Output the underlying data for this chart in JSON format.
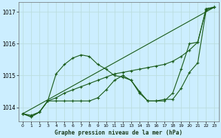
{
  "title": "Graphe pression niveau de la mer (hPa)",
  "bg_color": "#cceeff",
  "grid_color": "#bbdddd",
  "line_color": "#1a5c1a",
  "xlim": [
    -0.5,
    23.5
  ],
  "ylim": [
    1013.55,
    1017.3
  ],
  "yticks": [
    1014,
    1015,
    1016,
    1017
  ],
  "xticks": [
    0,
    1,
    2,
    3,
    4,
    5,
    6,
    7,
    8,
    9,
    10,
    11,
    12,
    13,
    14,
    15,
    16,
    17,
    18,
    19,
    20,
    21,
    22,
    23
  ],
  "series": [
    {
      "x": [
        0,
        1,
        2,
        3,
        4,
        5,
        6,
        7,
        8,
        9,
        10,
        11,
        12,
        13,
        14,
        15,
        16,
        17,
        18,
        19,
        20,
        21,
        22,
        23
      ],
      "y": [
        1013.8,
        1013.75,
        1013.85,
        1014.2,
        1014.3,
        1014.45,
        1014.55,
        1014.65,
        1014.75,
        1014.85,
        1014.95,
        1015.05,
        1015.1,
        1015.15,
        1015.2,
        1015.25,
        1015.3,
        1015.35,
        1015.45,
        1015.6,
        1015.8,
        1016.05,
        1017.1,
        1017.15
      ],
      "linestyle": "-"
    },
    {
      "x": [
        0,
        1,
        2,
        3,
        4,
        5,
        6,
        7,
        8,
        9,
        10,
        11,
        12,
        13,
        14,
        15,
        16,
        17,
        18,
        19,
        20,
        21,
        22,
        23
      ],
      "y": [
        1013.8,
        1013.7,
        1013.85,
        1014.2,
        1015.05,
        1015.35,
        1015.55,
        1015.65,
        1015.6,
        1015.35,
        1015.2,
        1015.0,
        1014.95,
        1014.85,
        1014.45,
        1014.2,
        1014.2,
        1014.2,
        1014.45,
        1015.2,
        1016.0,
        1016.05,
        1017.1,
        1017.15
      ],
      "linestyle": "-"
    },
    {
      "x": [
        0,
        1,
        2,
        3,
        4,
        5,
        6,
        7,
        8,
        9,
        10,
        11,
        12,
        13,
        14,
        15,
        16,
        17,
        18,
        19,
        20,
        21,
        22,
        23
      ],
      "y": [
        1013.8,
        1013.7,
        1013.85,
        1014.2,
        1014.2,
        1014.2,
        1014.2,
        1014.2,
        1014.2,
        1014.3,
        1014.55,
        1014.85,
        1015.0,
        1014.85,
        1014.5,
        1014.2,
        1014.2,
        1014.25,
        1014.25,
        1014.6,
        1015.1,
        1015.4,
        1017.05,
        1017.15
      ],
      "linestyle": "-"
    },
    {
      "x": [
        0,
        23
      ],
      "y": [
        1013.8,
        1017.15
      ],
      "linestyle": "-"
    }
  ]
}
